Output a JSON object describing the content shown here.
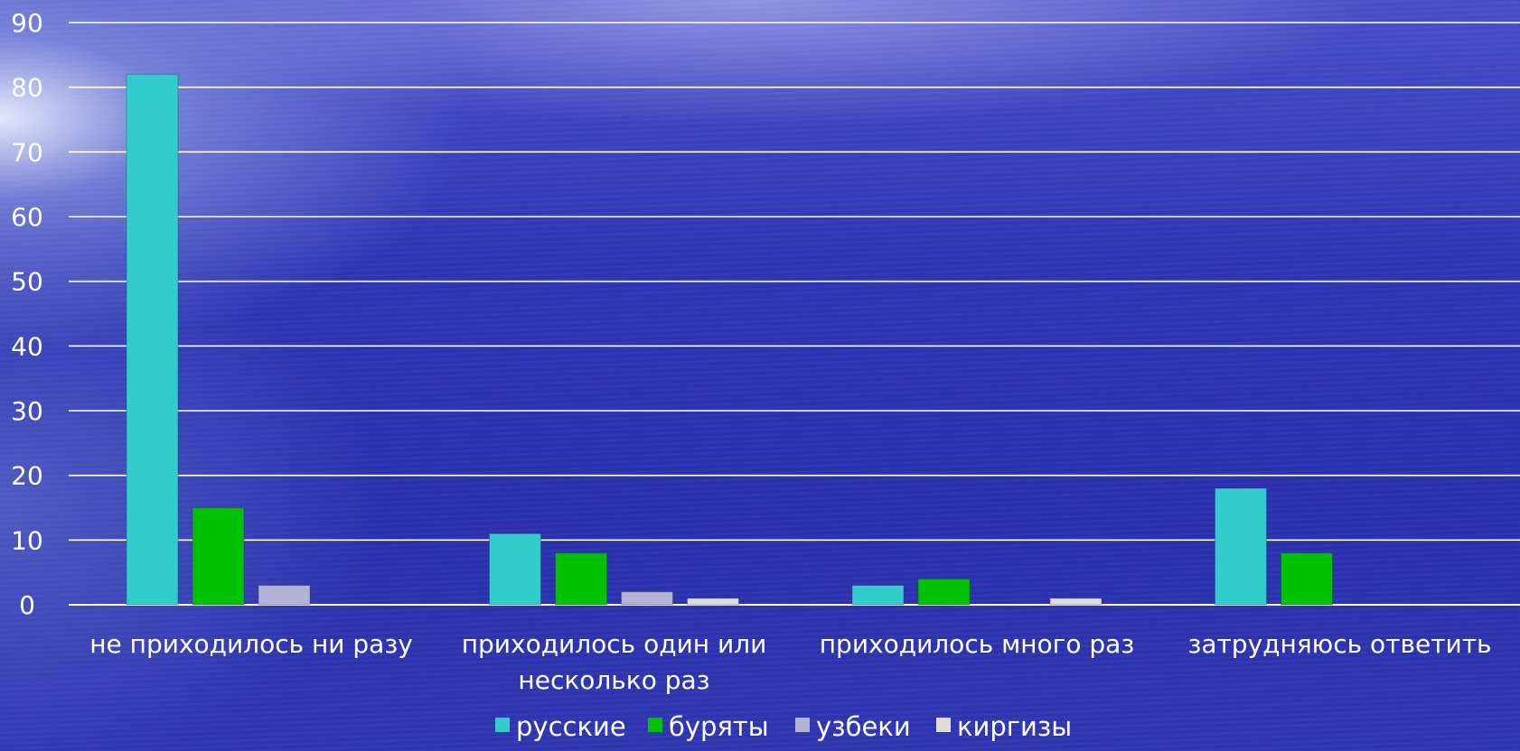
{
  "chart_data": {
    "type": "bar",
    "categories": [
      "не приходилось ни разу",
      "приходилось один или несколько раз",
      "приходилось много раз",
      "затрудняюсь ответить"
    ],
    "category_lines": [
      [
        "не приходилось ни разу"
      ],
      [
        "приходилось один или",
        "несколько раз"
      ],
      [
        "приходилось много раз"
      ],
      [
        "затрудняюсь ответить"
      ]
    ],
    "series": [
      {
        "name": "русские",
        "color": "#33cccc",
        "values": [
          82,
          11,
          3,
          18
        ]
      },
      {
        "name": "буряты",
        "color": "#00c200",
        "values": [
          15,
          8,
          4,
          8
        ]
      },
      {
        "name": "узбеки",
        "color": "#b3b3d6",
        "values": [
          3,
          2,
          0,
          0
        ]
      },
      {
        "name": "киргизы",
        "color": "#dcdcdc",
        "values": [
          0,
          1,
          1,
          0
        ]
      }
    ],
    "ylim": [
      0,
      90
    ],
    "yticks": [
      0,
      10,
      20,
      30,
      40,
      50,
      60,
      70,
      80,
      90
    ],
    "grid": true,
    "legend": "bottom",
    "title": "",
    "xlabel": "",
    "ylabel": ""
  }
}
